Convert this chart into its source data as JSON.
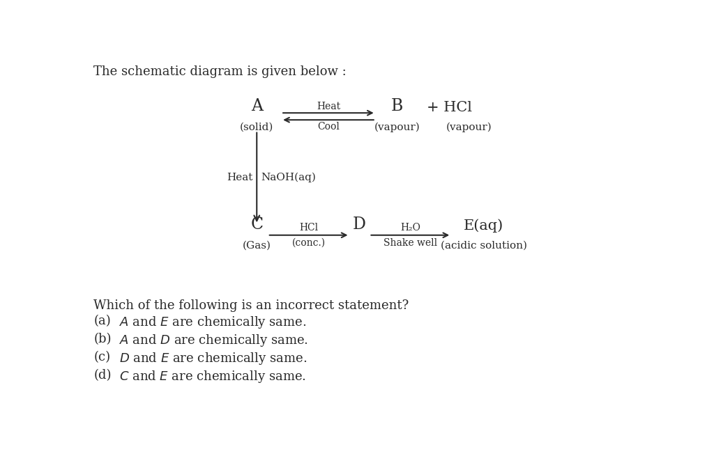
{
  "title": "The schematic diagram is given below :",
  "background_color": "#ffffff",
  "text_color": "#2a2a2a",
  "diagram": {
    "A_label": "A",
    "A_sub": "(solid)",
    "B_label": "B",
    "B_sub": "(vapour)",
    "plus_HCl": "+ HCl",
    "HCl_sub": "(vapour)",
    "heat_label": "Heat",
    "cool_label": "Cool",
    "heat_NaOH": "Heat",
    "NaOH_label": "NaOH(aq)",
    "C_label": "C",
    "C_sub": "(Gas)",
    "HCl_conc": "HCl",
    "conc_label": "(conc.)",
    "D_label": "D",
    "H2O_label": "H₂O",
    "shake_label": "Shake well",
    "E_label": "E(aq)",
    "E_sub": "(acidic solution)"
  },
  "question": "Which of the following is an incorrect statement?",
  "options_label": [
    "(a)",
    "(b)",
    "(c)",
    "(d)"
  ],
  "options_italic": [
    "A",
    "A",
    "D",
    "C"
  ],
  "options_and": [
    " and ",
    " and ",
    " and ",
    " and "
  ],
  "options_italic2": [
    "E",
    "D",
    "E",
    "E"
  ],
  "options_rest": [
    " are chemically same.",
    " are chemically same.",
    " are chemically same.",
    " are chemically same."
  ]
}
